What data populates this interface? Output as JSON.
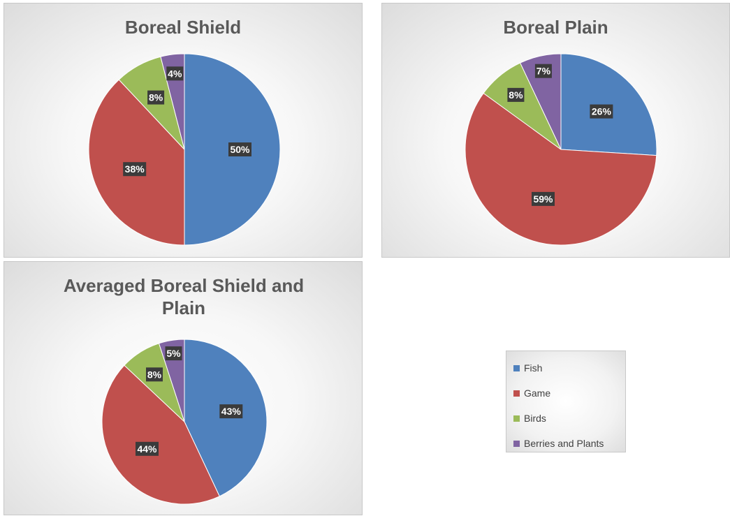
{
  "legend": {
    "items": [
      {
        "label": "Fish",
        "color": "#4f81bd"
      },
      {
        "label": "Game",
        "color": "#c0504d"
      },
      {
        "label": "Birds",
        "color": "#9bbb59"
      },
      {
        "label": "Berries and Plants",
        "color": "#8064a2"
      }
    ]
  },
  "chart_data": [
    {
      "type": "pie",
      "title": "Boreal Shield",
      "categories": [
        "Fish",
        "Game",
        "Birds",
        "Berries and Plants"
      ],
      "values": [
        50,
        38,
        8,
        4
      ],
      "labels": [
        "50%",
        "38%",
        "8%",
        "4%"
      ],
      "colors": [
        "#4f81bd",
        "#c0504d",
        "#9bbb59",
        "#8064a2"
      ],
      "legend": "bottom-right"
    },
    {
      "type": "pie",
      "title": "Boreal Plain",
      "categories": [
        "Fish",
        "Game",
        "Birds",
        "Berries and Plants"
      ],
      "values": [
        26,
        59,
        8,
        7
      ],
      "labels": [
        "26%",
        "59%",
        "8%",
        "7%"
      ],
      "colors": [
        "#4f81bd",
        "#c0504d",
        "#9bbb59",
        "#8064a2"
      ],
      "legend": "bottom-right"
    },
    {
      "type": "pie",
      "title": "Averaged Boreal Shield and Plain",
      "categories": [
        "Fish",
        "Game",
        "Birds",
        "Berries and Plants"
      ],
      "values": [
        43,
        44,
        8,
        5
      ],
      "labels": [
        "43%",
        "44%",
        "8%",
        "5%"
      ],
      "colors": [
        "#4f81bd",
        "#c0504d",
        "#9bbb59",
        "#8064a2"
      ],
      "legend": "bottom-right"
    }
  ]
}
